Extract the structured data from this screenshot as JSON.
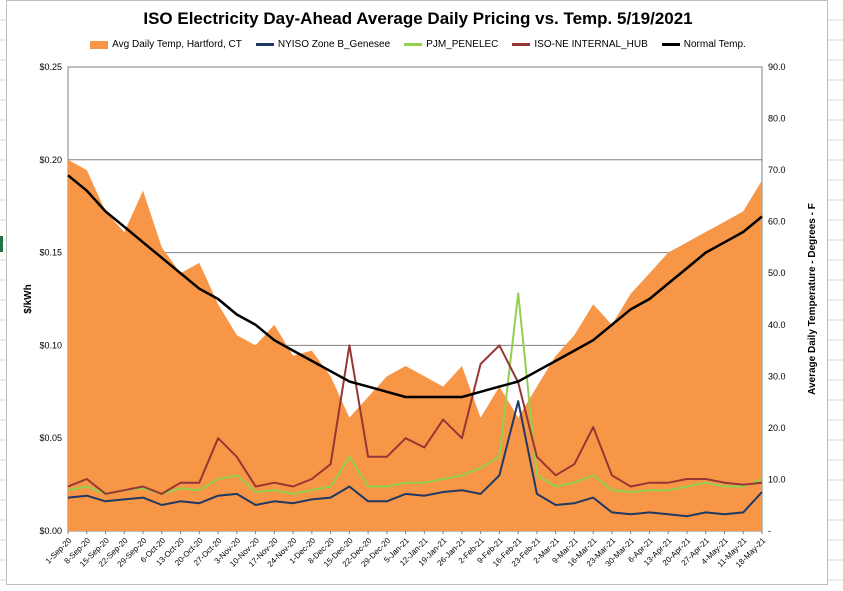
{
  "chart_data": {
    "type": "line",
    "title": "ISO Electricity Day-Ahead Average Daily Pricing vs. Temp. 5/19/2021",
    "ylabel": "$/kWh",
    "y2label": "Average Daily Temperature - Degrees - F",
    "ylim": [
      0,
      0.25
    ],
    "y2lim": [
      0,
      90
    ],
    "yticks": [
      "$0.00",
      "$0.05",
      "$0.10",
      "$0.15",
      "$0.20",
      "$0.25"
    ],
    "y2ticks": [
      "-",
      "10.0",
      "20.0",
      "30.0",
      "40.0",
      "50.0",
      "60.0",
      "70.0",
      "80.0",
      "90.0"
    ],
    "grid": true,
    "legend": "top",
    "categories": [
      "1-Sep-20",
      "8-Sep-20",
      "15-Sep-20",
      "22-Sep-20",
      "29-Sep-20",
      "6-Oct-20",
      "13-Oct-20",
      "20-Oct-20",
      "27-Oct-20",
      "3-Nov-20",
      "10-Nov-20",
      "17-Nov-20",
      "24-Nov-20",
      "1-Dec-20",
      "8-Dec-20",
      "15-Dec-20",
      "22-Dec-20",
      "29-Dec-20",
      "5-Jan-21",
      "12-Jan-21",
      "19-Jan-21",
      "26-Jan-21",
      "2-Feb-21",
      "9-Feb-21",
      "16-Feb-21",
      "23-Feb-21",
      "2-Mar-21",
      "9-Mar-21",
      "16-Mar-21",
      "23-Mar-21",
      "30-Mar-21",
      "6-Apr-21",
      "13-Apr-21",
      "20-Apr-21",
      "27-Apr-21",
      "4-May-21",
      "11-May-21",
      "18-May-21"
    ],
    "series": [
      {
        "name": "Avg Daily Temp, Hartford, CT",
        "axis": "right",
        "kind": "area",
        "color": "#f79646",
        "values": [
          72,
          70,
          62,
          58,
          66,
          55,
          50,
          52,
          44,
          38,
          36,
          40,
          34,
          35,
          30,
          22,
          26,
          30,
          32,
          30,
          28,
          32,
          22,
          28,
          22,
          28,
          34,
          38,
          44,
          40,
          46,
          50,
          54,
          56,
          58,
          60,
          62,
          68
        ]
      },
      {
        "name": "NYISO Zone B_Genesee",
        "axis": "left",
        "kind": "line",
        "color": "#1f3864",
        "values": [
          0.018,
          0.019,
          0.016,
          0.017,
          0.018,
          0.014,
          0.016,
          0.015,
          0.019,
          0.02,
          0.014,
          0.016,
          0.015,
          0.017,
          0.018,
          0.024,
          0.016,
          0.016,
          0.02,
          0.019,
          0.021,
          0.022,
          0.02,
          0.03,
          0.07,
          0.02,
          0.014,
          0.015,
          0.018,
          0.01,
          0.009,
          0.01,
          0.009,
          0.008,
          0.01,
          0.009,
          0.01,
          0.021
        ]
      },
      {
        "name": "PJM_PENELEC",
        "axis": "left",
        "kind": "line",
        "color": "#92d050",
        "values": [
          0.022,
          0.024,
          0.02,
          0.022,
          0.023,
          0.02,
          0.023,
          0.022,
          0.028,
          0.03,
          0.021,
          0.022,
          0.02,
          0.022,
          0.024,
          0.04,
          0.024,
          0.024,
          0.026,
          0.026,
          0.028,
          0.03,
          0.034,
          0.04,
          0.128,
          0.03,
          0.024,
          0.026,
          0.03,
          0.022,
          0.021,
          0.022,
          0.022,
          0.024,
          0.026,
          0.024,
          0.024,
          0.028
        ]
      },
      {
        "name": "ISO-NE INTERNAL_HUB",
        "axis": "left",
        "kind": "line",
        "color": "#953735",
        "values": [
          0.024,
          0.028,
          0.02,
          0.022,
          0.024,
          0.02,
          0.026,
          0.026,
          0.05,
          0.04,
          0.024,
          0.026,
          0.024,
          0.028,
          0.036,
          0.1,
          0.04,
          0.04,
          0.05,
          0.045,
          0.06,
          0.05,
          0.09,
          0.1,
          0.08,
          0.04,
          0.03,
          0.036,
          0.056,
          0.03,
          0.024,
          0.026,
          0.026,
          0.028,
          0.028,
          0.026,
          0.025,
          0.026
        ]
      },
      {
        "name": "Normal Temp.",
        "axis": "right",
        "kind": "line",
        "color": "#000000",
        "values": [
          69,
          66,
          62,
          59,
          56,
          53,
          50,
          47,
          45,
          42,
          40,
          37,
          35,
          33,
          31,
          29,
          28,
          27,
          26,
          26,
          26,
          26,
          27,
          28,
          29,
          31,
          33,
          35,
          37,
          40,
          43,
          45,
          48,
          51,
          54,
          56,
          58,
          61
        ]
      }
    ]
  }
}
